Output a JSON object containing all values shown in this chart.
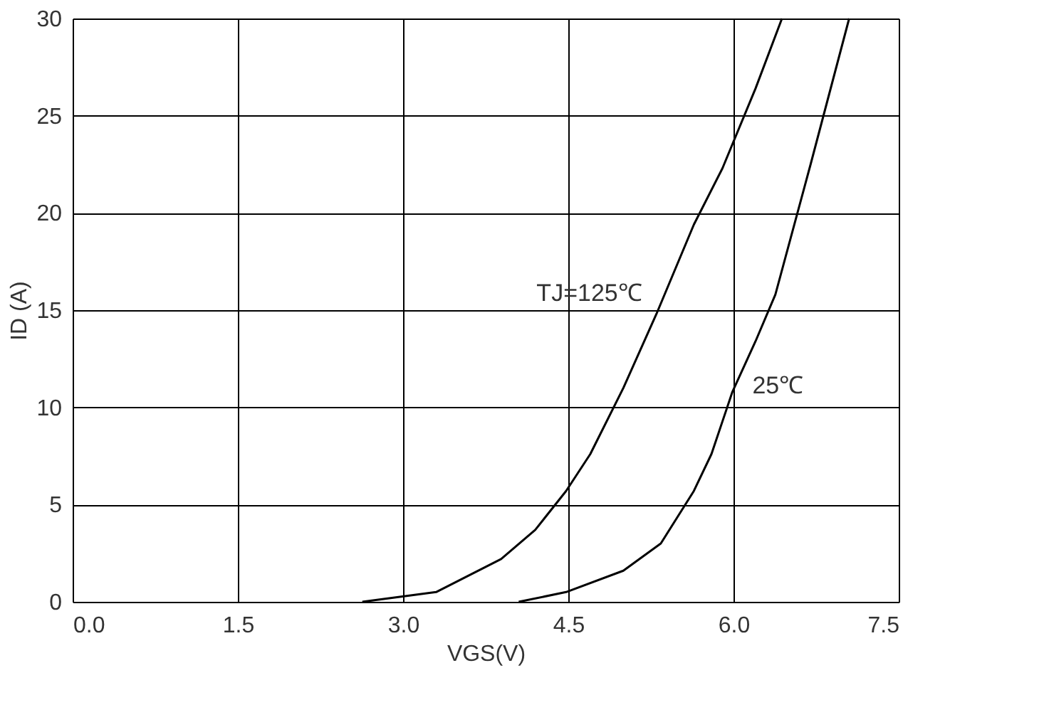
{
  "chart_data": {
    "type": "line",
    "xlabel": "VGS(V)",
    "ylabel": "ID (A)",
    "xlim": [
      0,
      7.5
    ],
    "ylim": [
      0,
      30
    ],
    "xticks": [
      {
        "value": 0,
        "label": "0.0"
      },
      {
        "value": 1.5,
        "label": "1.5"
      },
      {
        "value": 3,
        "label": "3.0"
      },
      {
        "value": 4.5,
        "label": "4.5"
      },
      {
        "value": 6,
        "label": "6.0"
      },
      {
        "value": 7.5,
        "label": "7.5"
      }
    ],
    "yticks": [
      0,
      5,
      10,
      15,
      20,
      25,
      30
    ],
    "grid": true,
    "line_style": "solid",
    "marker": "none",
    "series": [
      {
        "name": "TJ=125℃",
        "color": "#000000",
        "x": [
          2.63,
          3.3,
          3.89,
          4.2,
          4.48,
          4.7,
          5.0,
          5.3,
          5.64,
          5.9,
          6.2,
          6.44
        ],
        "values": [
          0,
          0.5,
          2.2,
          3.7,
          5.7,
          7.6,
          11.0,
          14.8,
          19.4,
          22.3,
          26.4,
          30
        ]
      },
      {
        "name": "25℃",
        "color": "#000000",
        "x": [
          4.05,
          4.48,
          5.0,
          5.34,
          5.64,
          5.8,
          5.99,
          6.2,
          6.38,
          6.7,
          7.05
        ],
        "values": [
          0,
          0.5,
          1.6,
          3.0,
          5.7,
          7.6,
          10.8,
          13.4,
          15.8,
          22.5,
          30
        ]
      }
    ]
  }
}
